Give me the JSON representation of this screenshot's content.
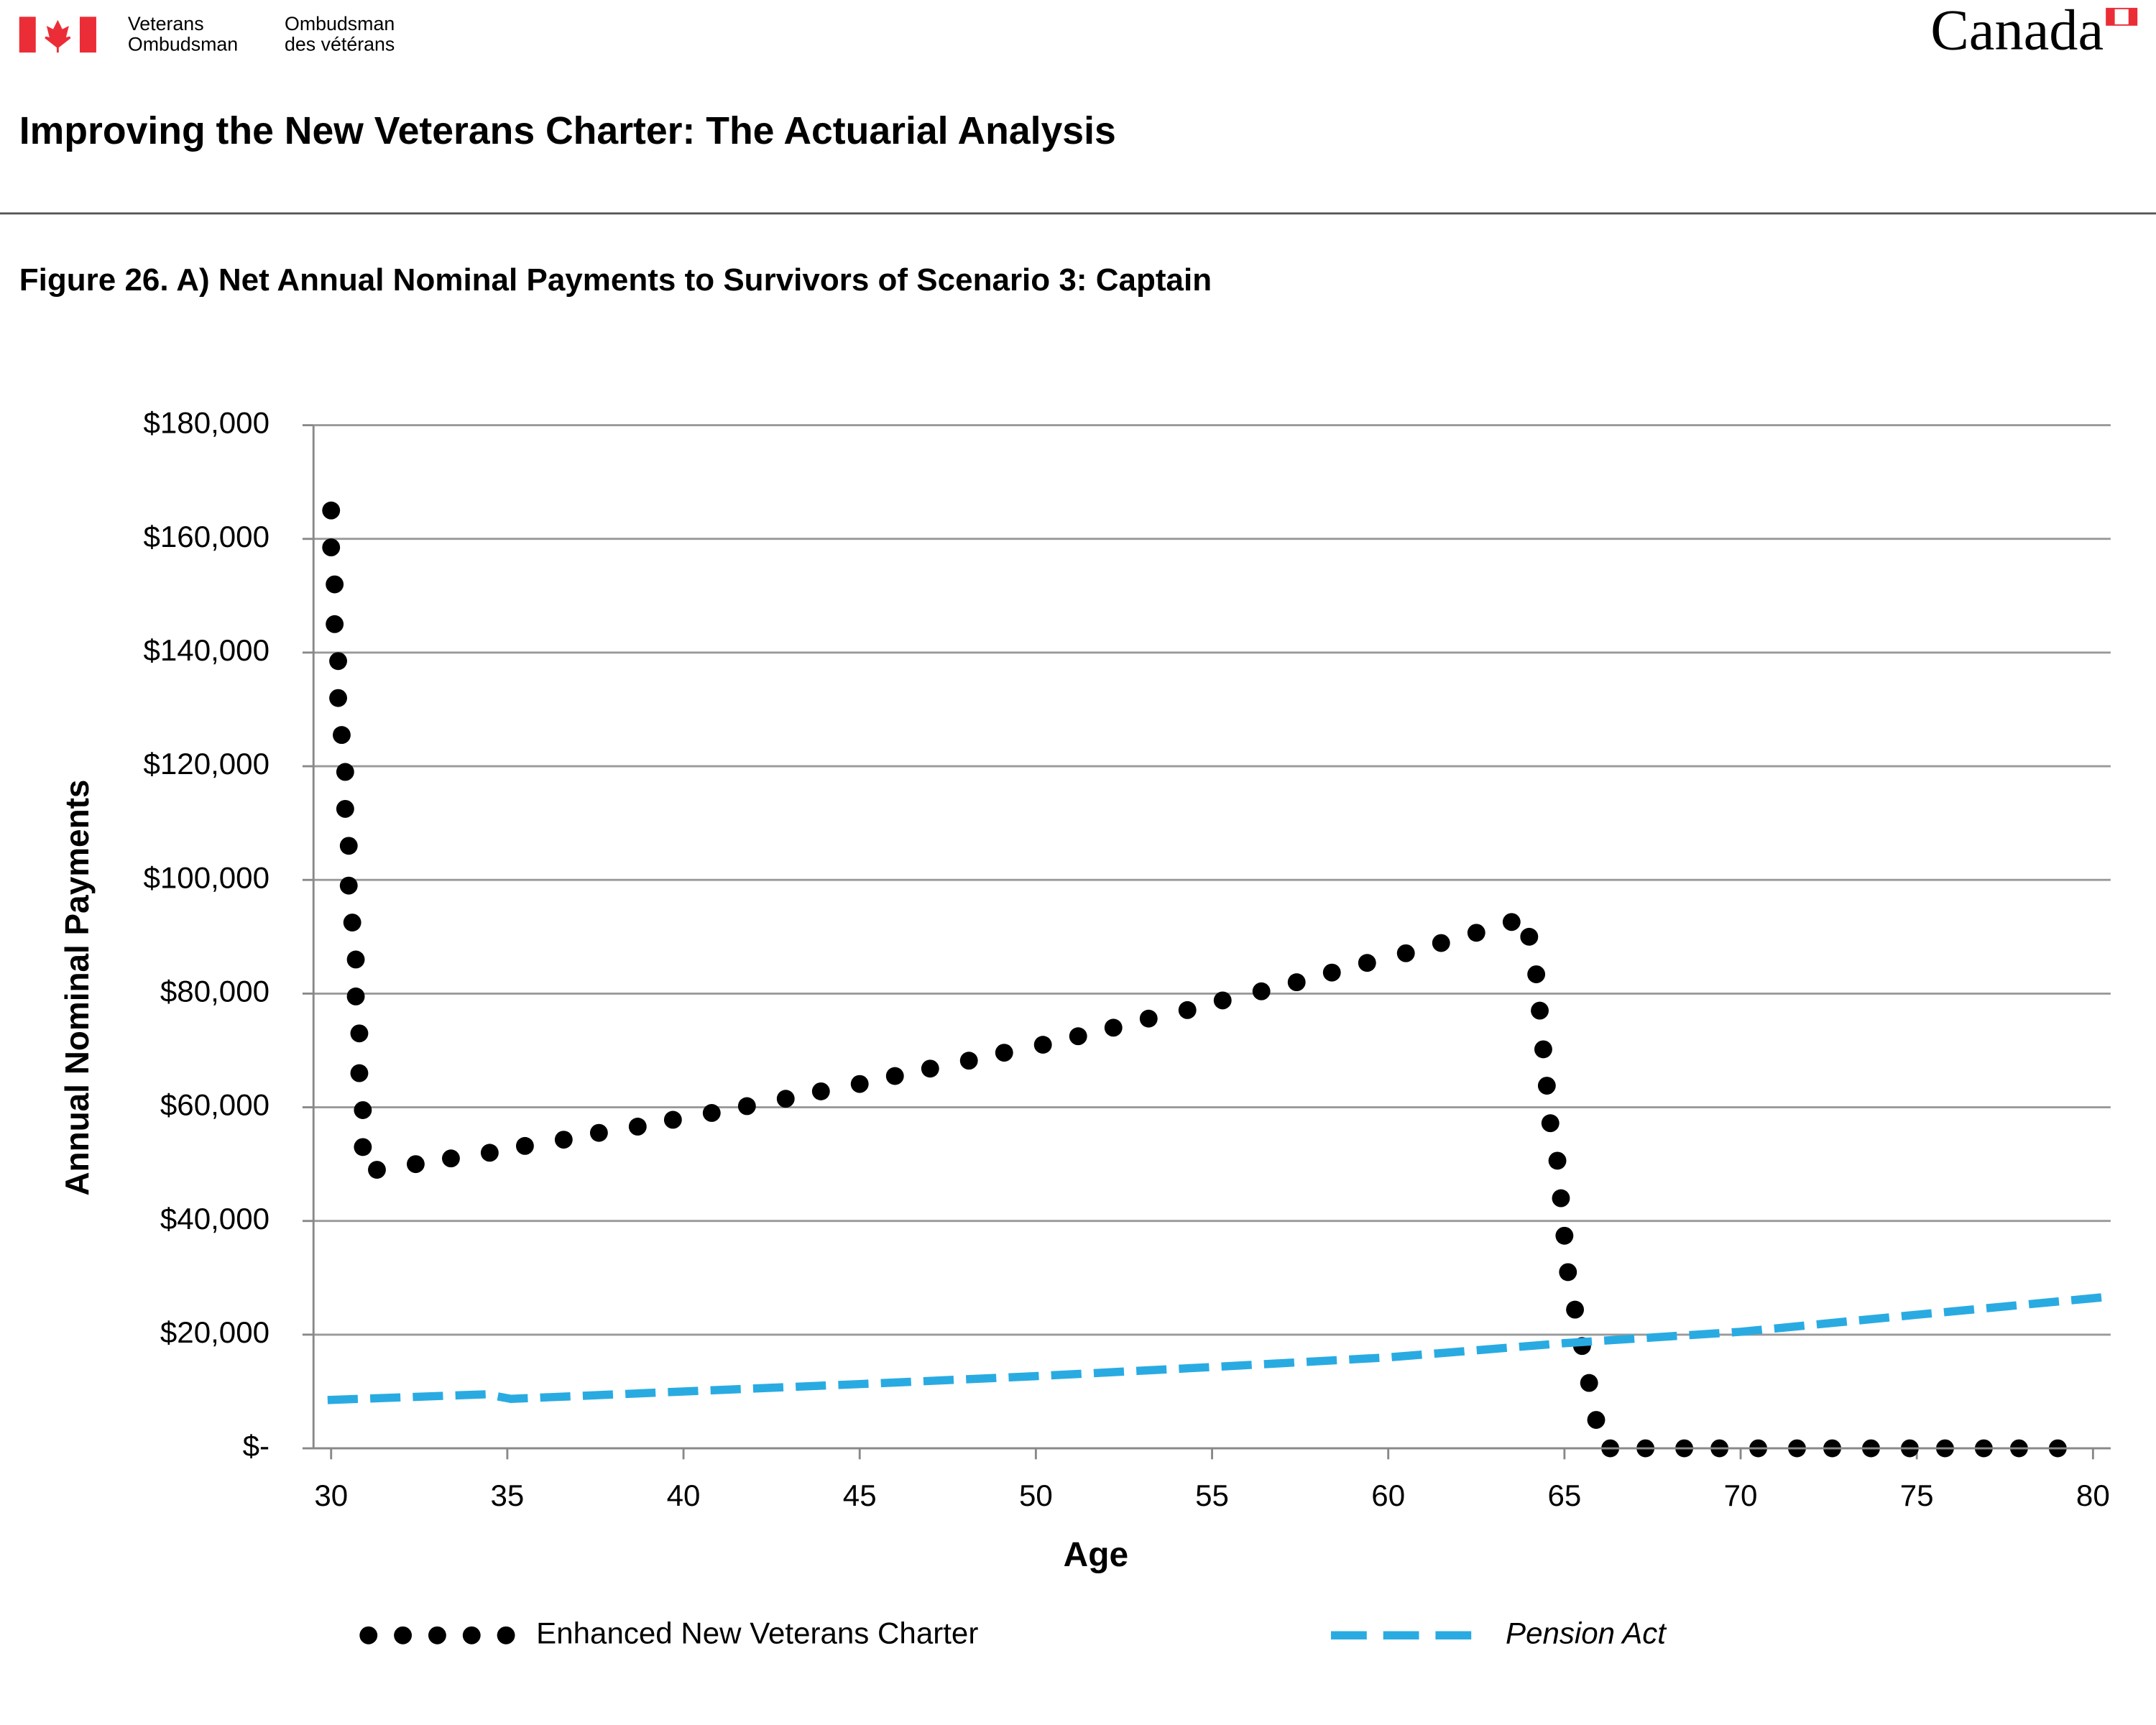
{
  "header": {
    "org_en_1": "Veterans",
    "org_en_2": "Ombudsman",
    "org_fr_1": "Ombudsman",
    "org_fr_2": "des vétérans",
    "wordmark": "Canada",
    "title": "Improving the New Veterans Charter: The Actuarial Analysis"
  },
  "chart_data": {
    "type": "line",
    "title": "Figure 26. A) Net Annual Nominal Payments to Survivors of Scenario 3: Captain",
    "xlabel": "Age",
    "ylabel": "Annual Nominal Payments",
    "xlim": [
      29.5,
      80.5
    ],
    "xticks": [
      30,
      35,
      40,
      45,
      50,
      55,
      60,
      65,
      70,
      75,
      80
    ],
    "ylim": [
      0,
      180000
    ],
    "yticks": [
      {
        "value": 0,
        "label": "$-"
      },
      {
        "value": 20000,
        "label": "$20,000"
      },
      {
        "value": 40000,
        "label": "$40,000"
      },
      {
        "value": 60000,
        "label": "$60,000"
      },
      {
        "value": 80000,
        "label": "$80,000"
      },
      {
        "value": 100000,
        "label": "$100,000"
      },
      {
        "value": 120000,
        "label": "$120,000"
      },
      {
        "value": 140000,
        "label": "$140,000"
      },
      {
        "value": 160000,
        "label": "$160,000"
      },
      {
        "value": 180000,
        "label": "$180,000"
      }
    ],
    "grid": true,
    "series": [
      {
        "name": "Enhanced New Veterans Charter",
        "color": "#000000",
        "style": "dotted",
        "x": [
          30.0,
          30.0,
          30.1,
          30.1,
          30.2,
          30.2,
          30.3,
          30.4,
          30.4,
          30.5,
          30.5,
          30.6,
          30.7,
          30.7,
          30.8,
          30.8,
          30.9,
          30.9,
          31.3,
          32.4,
          33.4,
          34.5,
          35.5,
          36.6,
          37.6,
          38.7,
          39.7,
          40.8,
          41.8,
          42.9,
          43.9,
          45.0,
          46.0,
          47.0,
          48.1,
          49.1,
          50.2,
          51.2,
          52.2,
          53.2,
          54.3,
          55.3,
          56.4,
          57.4,
          58.4,
          59.4,
          60.5,
          61.5,
          62.5,
          63.5,
          64.0,
          64.2,
          64.3,
          64.4,
          64.5,
          64.6,
          64.8,
          64.9,
          65.0,
          65.1,
          65.3,
          65.5,
          65.7,
          65.9,
          66.3,
          67.3,
          68.4,
          69.4,
          70.5,
          71.6,
          72.6,
          73.7,
          74.8,
          75.8,
          76.9,
          77.9,
          79.0
        ],
        "values": [
          165000,
          158500,
          152000,
          145000,
          138500,
          132000,
          125500,
          119000,
          112500,
          106000,
          99000,
          92500,
          86000,
          79500,
          73000,
          66000,
          59500,
          53000,
          49000,
          50000,
          51000,
          52000,
          53200,
          54300,
          55500,
          56600,
          57800,
          59000,
          60200,
          61500,
          62800,
          64100,
          65500,
          66800,
          68200,
          69600,
          71000,
          72500,
          74000,
          75600,
          77100,
          78800,
          80400,
          82000,
          83700,
          85400,
          87100,
          88900,
          90700,
          92600,
          90000,
          83400,
          77000,
          70200,
          63800,
          57200,
          50600,
          44000,
          37400,
          31000,
          24400,
          18000,
          11500,
          5000,
          0,
          0,
          0,
          0,
          0,
          0,
          0,
          0,
          0,
          0,
          0,
          0,
          0
        ]
      },
      {
        "name": "Pension Act",
        "color": "#29abe2",
        "style": "dashed",
        "x": [
          29.9,
          34.4,
          35.1,
          40,
          45,
          50,
          55,
          60,
          65,
          70,
          75,
          80.5
        ],
        "values": [
          8500,
          9500,
          8700,
          10000,
          11300,
          12700,
          14300,
          16000,
          18500,
          20500,
          23500,
          26700
        ]
      }
    ]
  }
}
